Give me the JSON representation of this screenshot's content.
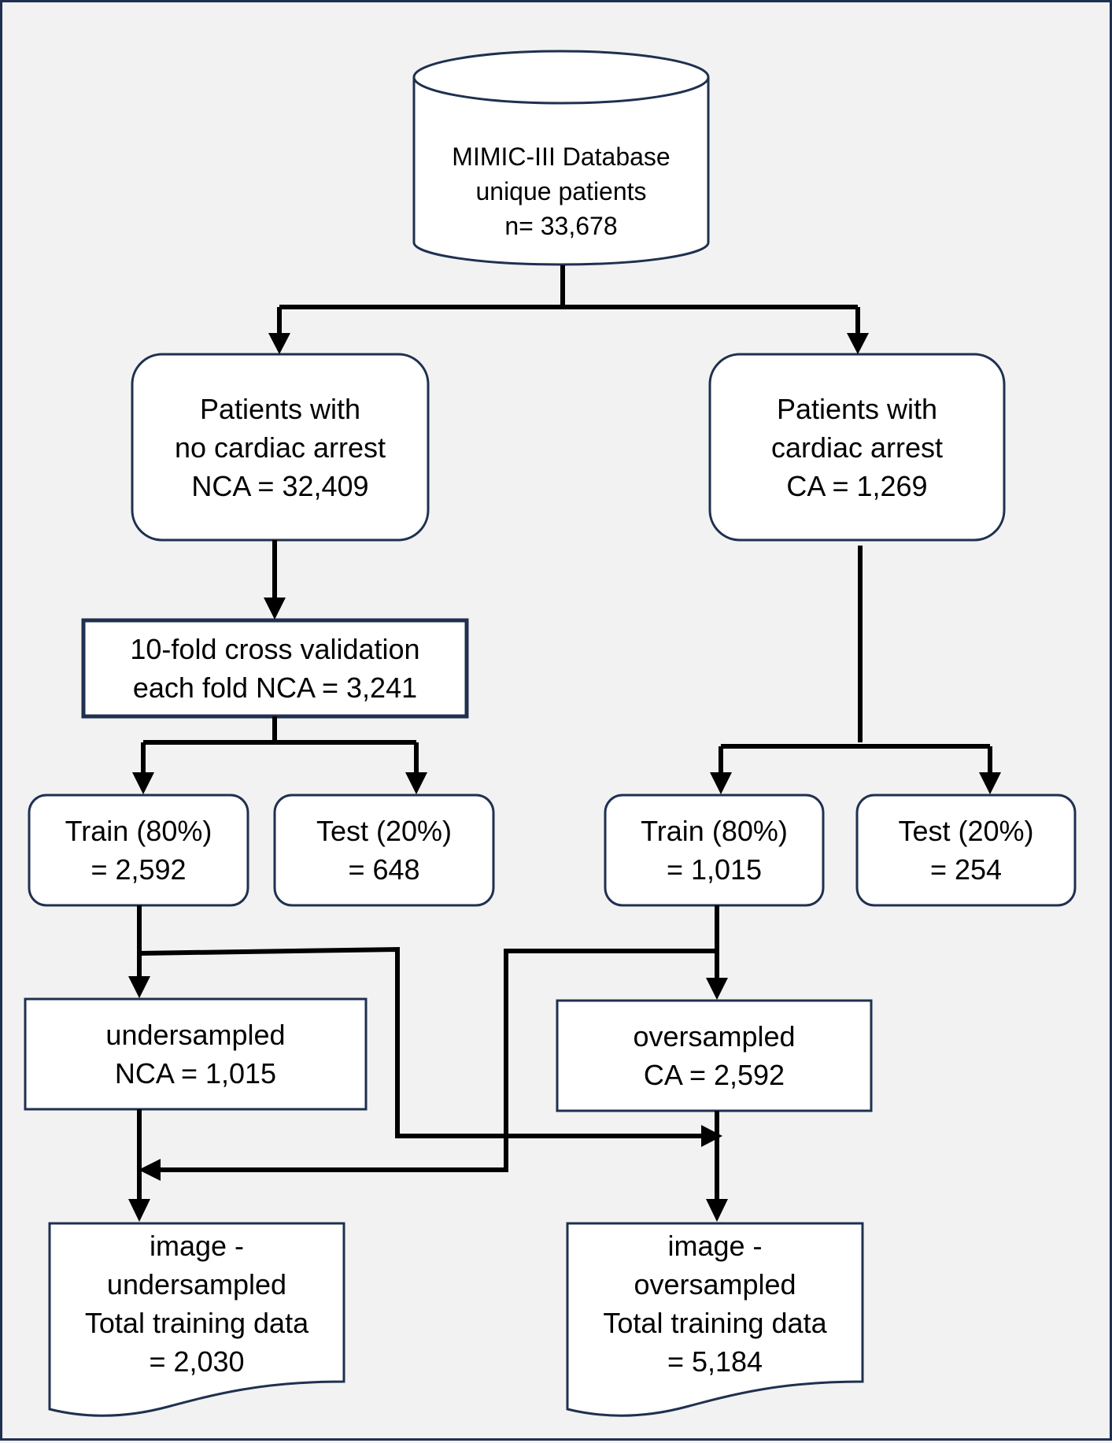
{
  "database": {
    "line1": "MIMIC-III Database",
    "line2": "unique patients",
    "line3": "n= 33,678"
  },
  "nca_group": {
    "line1": "Patients with",
    "line2": "no cardiac arrest",
    "line3": "NCA = 32,409"
  },
  "ca_group": {
    "line1": "Patients with",
    "line2": "cardiac arrest",
    "line3": "CA = 1,269"
  },
  "cross_validation": {
    "line1": "10-fold cross validation",
    "line2": "each fold NCA = 3,241"
  },
  "nca_train": {
    "line1": "Train (80%)",
    "line2": "= 2,592"
  },
  "nca_test": {
    "line1": "Test (20%)",
    "line2": "= 648"
  },
  "ca_train": {
    "line1": "Train (80%)",
    "line2": "= 1,015"
  },
  "ca_test": {
    "line1": "Test (20%)",
    "line2": "= 254"
  },
  "undersampled": {
    "line1": "undersampled",
    "line2": "NCA = 1,015"
  },
  "oversampled": {
    "line1": "oversampled",
    "line2": "CA = 2,592"
  },
  "image_undersampled": {
    "line1": "image -",
    "line2": "undersampled",
    "line3": "Total training data",
    "line4": "= 2,030"
  },
  "image_oversampled": {
    "line1": "image -",
    "line2": "oversampled",
    "line3": "Total training data",
    "line4": "= 5,184"
  },
  "colors": {
    "border": "#1f3050",
    "background": "#f2f2f2",
    "box_fill": "#ffffff",
    "connector": "#000000"
  }
}
